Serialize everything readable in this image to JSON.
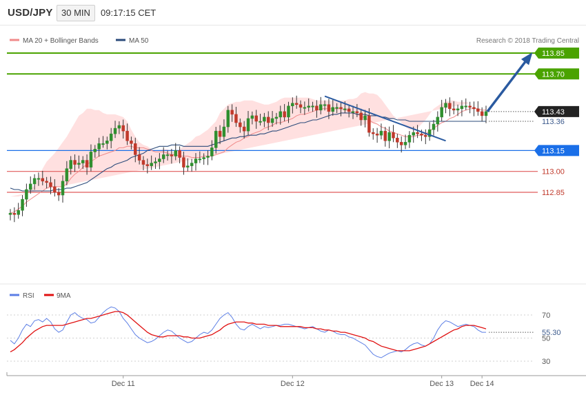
{
  "header": {
    "symbol": "USD/JPY",
    "timeframe": "30 MIN",
    "time": "09:17:15 CET"
  },
  "legend": {
    "ma20_bb": "MA 20 + Bollinger Bands",
    "ma50": "MA 50",
    "copyright": "Research © 2018 Trading Central"
  },
  "colors": {
    "resistance": "#4aa300",
    "pivot": "#1a6fe8",
    "support": "#e05a5a",
    "current": "#222222",
    "ma50": "#2a4a7a",
    "ma50_label": "#3c5a8c",
    "bb_fill": "#ffd6d6",
    "ma20": "#f08a8a",
    "candle_up": "#2f8f2f",
    "candle_down": "#c0392b",
    "rsi": "#5b7ee5",
    "rsi_ma": "#e01010",
    "arrow": "#2a5aa0"
  },
  "chart_data": [
    {
      "type": "candlestick",
      "x_label_marks": [
        "Dec 11",
        "Dec 12",
        "Dec 13",
        "Dec 14"
      ],
      "ylim": [
        112.55,
        113.95
      ],
      "levels": [
        {
          "value": 113.85,
          "label": "113.85",
          "kind": "resistance"
        },
        {
          "value": 113.7,
          "label": "113.70",
          "kind": "resistance"
        },
        {
          "value": 113.15,
          "label": "113.15",
          "kind": "pivot"
        },
        {
          "value": 113.0,
          "label": "113.00",
          "kind": "support"
        },
        {
          "value": 112.85,
          "label": "112.85",
          "kind": "support"
        }
      ],
      "price_labels": [
        {
          "value": 113.43,
          "label": "113.43",
          "kind": "current"
        },
        {
          "value": 113.36,
          "label": "113.36",
          "kind": "ma50"
        }
      ],
      "close": [
        112.7,
        112.69,
        112.72,
        112.8,
        112.87,
        112.91,
        112.95,
        112.95,
        112.93,
        112.92,
        112.89,
        112.85,
        112.83,
        112.93,
        113.02,
        113.08,
        113.05,
        113.06,
        113.08,
        113.03,
        113.14,
        113.16,
        113.2,
        113.2,
        113.22,
        113.27,
        113.31,
        113.33,
        113.29,
        113.22,
        113.2,
        113.12,
        113.08,
        113.05,
        113.04,
        113.06,
        113.07,
        113.09,
        113.12,
        113.12,
        113.11,
        113.15,
        113.1,
        113.03,
        113.04,
        113.06,
        113.09,
        113.09,
        113.1,
        113.11,
        113.17,
        113.29,
        113.25,
        113.32,
        113.44,
        113.41,
        113.35,
        113.32,
        113.29,
        113.38,
        113.4,
        113.36,
        113.36,
        113.39,
        113.35,
        113.38,
        113.39,
        113.43,
        113.39,
        113.47,
        113.49,
        113.48,
        113.46,
        113.46,
        113.47,
        113.47,
        113.44,
        113.48,
        113.48,
        113.43,
        113.46,
        113.46,
        113.45,
        113.45,
        113.43,
        113.43,
        113.42,
        113.37,
        113.4,
        113.28,
        113.27,
        113.26,
        113.29,
        113.22,
        113.28,
        113.24,
        113.21,
        113.19,
        113.21,
        113.26,
        113.28,
        113.27,
        113.26,
        113.25,
        113.3,
        113.34,
        113.39,
        113.46,
        113.49,
        113.45,
        113.44,
        113.45,
        113.47,
        113.47,
        113.46,
        113.45,
        113.43,
        113.4,
        113.43
      ],
      "moving_averages": [
        {
          "name": "MA 20",
          "values": [
            112.7,
            112.71,
            112.73,
            112.75,
            112.78,
            112.8,
            112.82,
            112.84,
            112.86,
            112.88,
            112.89,
            112.89,
            112.89,
            112.89,
            112.91,
            112.95,
            112.98,
            113.0,
            113.03,
            113.05,
            113.07,
            113.09,
            113.11,
            113.12,
            113.13,
            113.14,
            113.15,
            113.17,
            113.17,
            113.18,
            113.18,
            113.17,
            113.17,
            113.17,
            113.16,
            113.15,
            113.14,
            113.14,
            113.14,
            113.13,
            113.12,
            113.12,
            113.11,
            113.11,
            113.11,
            113.1,
            113.1,
            113.1,
            113.11,
            113.11,
            113.11,
            113.12,
            113.13,
            113.14,
            113.17,
            113.19,
            113.21,
            113.22,
            113.24,
            113.25,
            113.27,
            113.28,
            113.29,
            113.31,
            113.32,
            113.33,
            113.35,
            113.35,
            113.36,
            113.37,
            113.38,
            113.4,
            113.41,
            113.41,
            113.42,
            113.43,
            113.44,
            113.45,
            113.45,
            113.45,
            113.45,
            113.45,
            113.45,
            113.44,
            113.44,
            113.42,
            113.41,
            113.4,
            113.38,
            113.37,
            113.35,
            113.34,
            113.32,
            113.31,
            113.29,
            113.28,
            113.27,
            113.26,
            113.25,
            113.25,
            113.25,
            113.26,
            113.26,
            113.27,
            113.29,
            113.31,
            113.33,
            113.35,
            113.36,
            113.38,
            113.39,
            113.41,
            113.43,
            113.44,
            113.45,
            113.45,
            113.45,
            113.44,
            113.44
          ]
        },
        {
          "name": "MA 50",
          "values": [
            112.88,
            112.87,
            112.87,
            112.86,
            112.86,
            112.86,
            112.86,
            112.86,
            112.86,
            112.86,
            112.86,
            112.87,
            112.87,
            112.87,
            112.88,
            112.88,
            112.89,
            112.9,
            112.91,
            112.92,
            112.94,
            112.96,
            112.98,
            113.0,
            113.02,
            113.03,
            113.05,
            113.06,
            113.07,
            113.08,
            113.1,
            113.11,
            113.12,
            113.13,
            113.15,
            113.16,
            113.17,
            113.18,
            113.18,
            113.18,
            113.19,
            113.19,
            113.19,
            113.18,
            113.18,
            113.18,
            113.18,
            113.18,
            113.18,
            113.18,
            113.19,
            113.2,
            113.21,
            113.22,
            113.23,
            113.24,
            113.24,
            113.25,
            113.25,
            113.26,
            113.26,
            113.26,
            113.27,
            113.27,
            113.28,
            113.29,
            113.29,
            113.3,
            113.31,
            113.32,
            113.33,
            113.34,
            113.35,
            113.35,
            113.36,
            113.37,
            113.37,
            113.38,
            113.39,
            113.4,
            113.41,
            113.41,
            113.42,
            113.42,
            113.42,
            113.42,
            113.41,
            113.41,
            113.41,
            113.4,
            113.4,
            113.4,
            113.39,
            113.39,
            113.38,
            113.38,
            113.37,
            113.37,
            113.37,
            113.36,
            113.36,
            113.36,
            113.36,
            113.36,
            113.36,
            113.36,
            113.36,
            113.36,
            113.36,
            113.36,
            113.36,
            113.36,
            113.36,
            113.36,
            113.36,
            113.36,
            113.36,
            113.36,
            113.36
          ]
        }
      ],
      "bb_upper": [
        112.82,
        112.82,
        112.82,
        112.83,
        112.84,
        112.87,
        112.9,
        112.96,
        113.02,
        113.07,
        113.1,
        113.13,
        113.17,
        113.21,
        113.25,
        113.3,
        113.35,
        113.4,
        113.42,
        113.45,
        113.45,
        113.44,
        113.44,
        113.42,
        113.41,
        113.41,
        113.41,
        113.4,
        113.39,
        113.36,
        113.3,
        113.25,
        113.21,
        113.19,
        113.18,
        113.16,
        113.15,
        113.15,
        113.16,
        113.16,
        113.14,
        113.14,
        113.16,
        113.18,
        113.2,
        113.22,
        113.25,
        113.26,
        113.28,
        113.3,
        113.33,
        113.36,
        113.42,
        113.45,
        113.48,
        113.49,
        113.5,
        113.5,
        113.51,
        113.51,
        113.51,
        113.5,
        113.49,
        113.48,
        113.48,
        113.49,
        113.5,
        113.52,
        113.53,
        113.53,
        113.53,
        113.53,
        113.53,
        113.53,
        113.53,
        113.52,
        113.51,
        113.51,
        113.51,
        113.51,
        113.51,
        113.51,
        113.51,
        113.51,
        113.52,
        113.52,
        113.53,
        113.56,
        113.57,
        113.56,
        113.56,
        113.55,
        113.52,
        113.48,
        113.44,
        113.4,
        113.38,
        113.35,
        113.32,
        113.3,
        113.3,
        113.31,
        113.34,
        113.37,
        113.41,
        113.45,
        113.47,
        113.49,
        113.5,
        113.51,
        113.51,
        113.5,
        113.5,
        113.5,
        113.49
      ],
      "bb_lower": [
        112.61,
        112.61,
        112.6,
        112.59,
        112.57,
        112.57,
        112.58,
        112.61,
        112.65,
        112.67,
        112.7,
        112.74,
        112.77,
        112.76,
        112.75,
        112.76,
        112.77,
        112.79,
        112.83,
        112.9,
        112.95,
        112.99,
        113.01,
        113.03,
        113.05,
        113.06,
        113.07,
        113.08,
        113.09,
        113.09,
        113.08,
        113.07,
        113.06,
        113.05,
        113.04,
        113.03,
        113.02,
        113.01,
        113.01,
        113.02,
        113.03,
        113.04,
        113.05,
        113.04,
        113.04,
        113.03,
        113.02,
        113.01,
        113.0,
        113.01,
        113.03,
        113.05,
        113.07,
        113.09,
        113.11,
        113.13,
        113.15,
        113.16,
        113.16,
        113.17,
        113.18,
        113.19,
        113.19,
        113.19,
        113.2,
        113.2,
        113.2,
        113.2,
        113.21,
        113.22,
        113.23,
        113.24,
        113.25,
        113.27,
        113.29,
        113.3,
        113.3,
        113.32,
        113.33,
        113.34,
        113.34,
        113.34,
        113.34,
        113.33,
        113.32,
        113.3,
        113.28,
        113.26,
        113.24,
        113.22,
        113.21,
        113.2,
        113.19,
        113.18,
        113.18,
        113.17,
        113.17,
        113.17,
        113.17,
        113.17,
        113.17,
        113.18,
        113.18,
        113.18,
        113.19,
        113.21,
        113.23,
        113.25,
        113.27,
        113.3,
        113.33,
        113.36,
        113.38,
        113.38,
        113.38,
        113.38
      ]
    },
    {
      "type": "line",
      "series": [
        {
          "name": "RSI",
          "values": [
            48,
            45,
            50,
            57,
            62,
            60,
            65,
            66,
            64,
            67,
            64,
            58,
            55,
            57,
            64,
            70,
            72,
            69,
            67,
            66,
            63,
            64,
            68,
            72,
            75,
            77,
            76,
            73,
            67,
            63,
            58,
            53,
            50,
            48,
            46,
            47,
            49,
            52,
            55,
            57,
            56,
            53,
            50,
            48,
            46,
            47,
            50,
            53,
            55,
            54,
            57,
            62,
            67,
            70,
            72,
            68,
            62,
            58,
            57,
            60,
            62,
            60,
            58,
            60,
            59,
            60,
            61,
            61,
            62,
            62,
            61,
            60,
            59,
            58,
            59,
            60,
            58,
            56,
            55,
            57,
            56,
            54,
            53,
            53,
            51,
            50,
            48,
            46,
            44,
            40,
            36,
            34,
            33,
            35,
            37,
            38,
            39,
            38,
            40,
            43,
            45,
            46,
            44,
            43,
            45,
            50,
            57,
            62,
            65,
            64,
            62,
            60,
            61,
            62,
            61,
            60,
            57,
            55,
            55
          ]
        },
        {
          "name": "9MA",
          "values": [
            38,
            40,
            43,
            46,
            50,
            53,
            56,
            58,
            60,
            61,
            61,
            61,
            61,
            61,
            62,
            63,
            64,
            65,
            66,
            67,
            67,
            68,
            69,
            70,
            71,
            72,
            73,
            73,
            72,
            70,
            67,
            64,
            61,
            58,
            55,
            53,
            52,
            51,
            51,
            52,
            52,
            52,
            52,
            51,
            51,
            50,
            50,
            50,
            51,
            52,
            53,
            55,
            57,
            60,
            62,
            63,
            64,
            64,
            64,
            63,
            63,
            62,
            62,
            62,
            61,
            61,
            61,
            60,
            60,
            60,
            60,
            60,
            60,
            59,
            59,
            59,
            58,
            58,
            57,
            57,
            56,
            56,
            55,
            55,
            54,
            53,
            52,
            51,
            50,
            48,
            47,
            45,
            43,
            42,
            41,
            40,
            39,
            39,
            39,
            39,
            40,
            41,
            42,
            43,
            45,
            47,
            49,
            51,
            53,
            55,
            57,
            58,
            60,
            61,
            61,
            61,
            60,
            59,
            58
          ]
        }
      ],
      "ylim": [
        20,
        85
      ],
      "y_ticks": [
        70,
        50,
        30
      ],
      "last_value_label": "55.30"
    }
  ]
}
